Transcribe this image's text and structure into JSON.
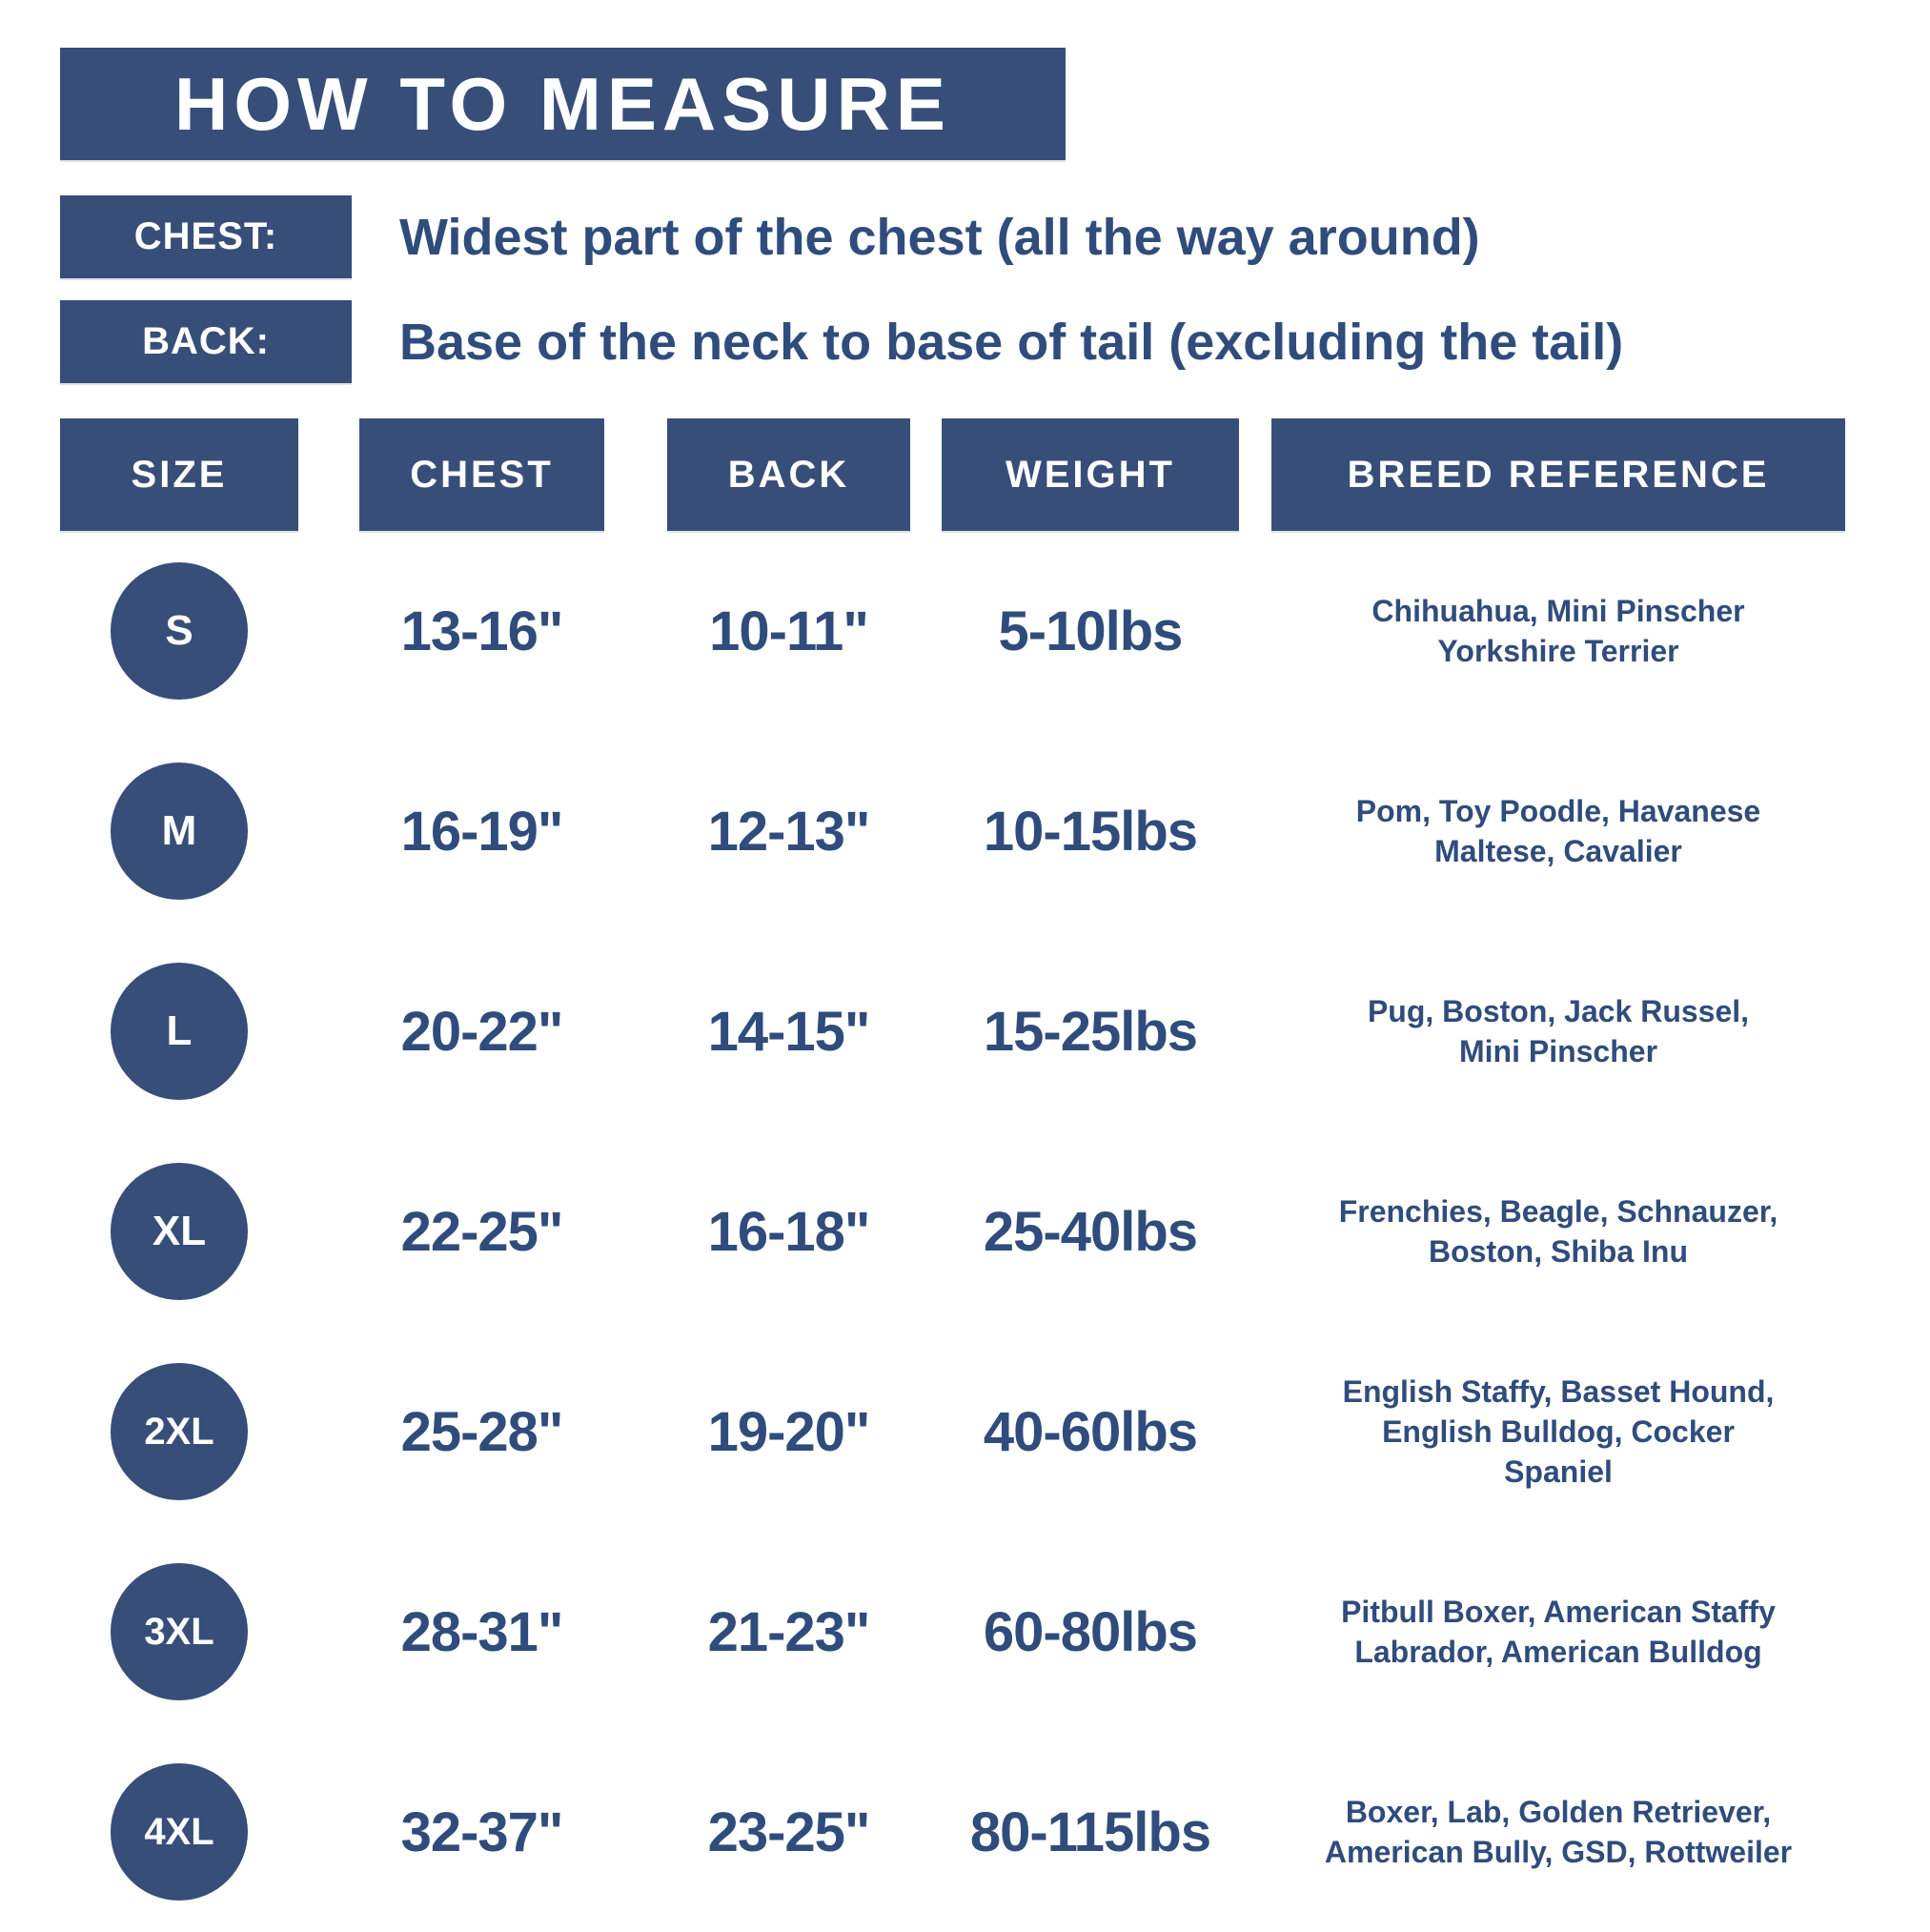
{
  "title": "HOW TO MEASURE",
  "instructions": {
    "chest_label": "CHEST:",
    "chest_text": "Widest part of the chest (all the way around)",
    "back_label": "BACK:",
    "back_text": "Base of the neck to base of tail (excluding the tail)"
  },
  "table": {
    "headers": [
      "SIZE",
      "CHEST",
      "BACK",
      "WEIGHT",
      "BREED REFERENCE"
    ],
    "rows": [
      {
        "size": "S",
        "chest": "13-16\"",
        "back": "10-11\"",
        "weight": "5-10lbs",
        "breeds": "Chihuahua, Mini Pinscher\nYorkshire Terrier"
      },
      {
        "size": "M",
        "chest": "16-19\"",
        "back": "12-13\"",
        "weight": "10-15lbs",
        "breeds": "Pom, Toy Poodle, Havanese\nMaltese, Cavalier"
      },
      {
        "size": "L",
        "chest": "20-22\"",
        "back": "14-15\"",
        "weight": "15-25lbs",
        "breeds": "Pug, Boston, Jack Russel,\nMini Pinscher"
      },
      {
        "size": "XL",
        "chest": "22-25\"",
        "back": "16-18\"",
        "weight": "25-40lbs",
        "breeds": "Frenchies, Beagle, Schnauzer,\nBoston, Shiba Inu"
      },
      {
        "size": "2XL",
        "chest": "25-28\"",
        "back": "19-20\"",
        "weight": "40-60lbs",
        "breeds": "English Staffy, Basset Hound,\nEnglish Bulldog, Cocker\nSpaniel"
      },
      {
        "size": "3XL",
        "chest": "28-31\"",
        "back": "21-23\"",
        "weight": "60-80lbs",
        "breeds": "Pitbull Boxer, American Staffy\nLabrador, American Bulldog"
      },
      {
        "size": "4XL",
        "chest": "32-37\"",
        "back": "23-25\"",
        "weight": "80-115lbs",
        "breeds": "Boxer, Lab, Golden Retriever,\nAmerican Bully, GSD, Rottweiler"
      }
    ]
  },
  "colors": {
    "block_navy": "#374E79",
    "text_navy": "#2F4C7C",
    "background": "#FFFFFF",
    "banner_text": "#FFFFFF"
  }
}
